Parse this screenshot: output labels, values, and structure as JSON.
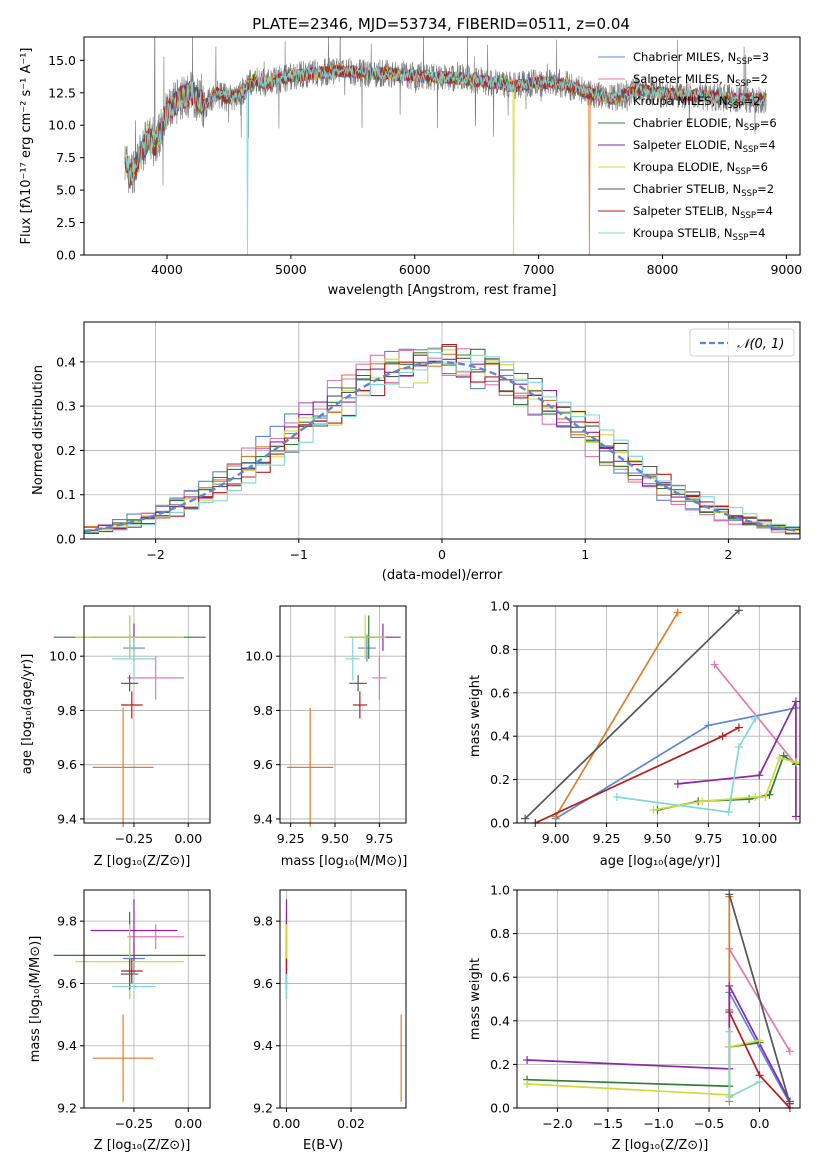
{
  "colors": {
    "Chabrier MILES": "#5b87d6",
    "Salpeter MILES": "#e377b0",
    "Kroupa MILES": "#e07b28",
    "Chabrier ELODIE": "#2e7d32",
    "Salpeter ELODIE": "#8e24aa",
    "Kroupa ELODIE": "#cddc39",
    "Chabrier STELIB": "#555555",
    "Salpeter STELIB": "#b71c1c",
    "Kroupa STELIB": "#80d8d8"
  },
  "chart_data": [
    {
      "id": "spectrum",
      "type": "line",
      "title": "PLATE=2346, MJD=53734, FIBERID=0511, z=0.04",
      "xlabel": "wavelength [Angstrom, rest frame]",
      "ylabel": "Flux [fλ10⁻¹⁷ erg cm⁻² s⁻¹ A⁻¹]",
      "xlim": [
        3330,
        9110
      ],
      "ylim": [
        0,
        16.8
      ],
      "xticks": [
        "4000",
        "5000",
        "6000",
        "7000",
        "8000",
        "9000"
      ],
      "yticks": [
        "0.0",
        "2.5",
        "5.0",
        "7.5",
        "10.0",
        "12.5",
        "15.0"
      ],
      "legend_position": "upper-right",
      "data_series": {
        "name": "data",
        "color": "#777777",
        "x": [
          3660,
          3700,
          3760,
          3800,
          3850,
          3900,
          3950,
          4000,
          4100,
          4200,
          4300,
          4400,
          4500,
          4600,
          4700,
          4800,
          4900,
          5000,
          5200,
          5400,
          5600,
          5800,
          6000,
          6200,
          6400,
          6600,
          6800,
          7000,
          7200,
          7400,
          7600,
          7800,
          8000,
          8200,
          8400,
          8600,
          8800
        ],
        "y": [
          7.6,
          6.0,
          7.0,
          8.0,
          9.0,
          8.5,
          9.5,
          11.0,
          12.0,
          12.5,
          11.5,
          12.5,
          12.0,
          12.5,
          13.5,
          13.2,
          13.5,
          13.8,
          14.0,
          14.2,
          14.0,
          14.0,
          13.8,
          13.7,
          13.6,
          13.3,
          13.0,
          13.3,
          13.2,
          12.5,
          12.0,
          12.8,
          12.5,
          12.3,
          12.2,
          12.0,
          12.0
        ]
      },
      "series": [
        {
          "name": "Chabrier MILES, N_SSP=3",
          "model": "Chabrier MILES",
          "label_main": "Chabrier MILES, N",
          "label_sub": "SSP",
          "label_eq": "=3"
        },
        {
          "name": "Salpeter MILES, N_SSP=2",
          "model": "Salpeter MILES",
          "label_main": "Salpeter MILES, N",
          "label_sub": "SSP",
          "label_eq": "=2"
        },
        {
          "name": "Kroupa MILES, N_SSP=2",
          "model": "Kroupa MILES",
          "label_main": "Kroupa MILES, N",
          "label_sub": "SSP",
          "label_eq": "=2",
          "drop_at": 7410
        },
        {
          "name": "Chabrier ELODIE, N_SSP=6",
          "model": "Chabrier ELODIE",
          "label_main": "Chabrier ELODIE, N",
          "label_sub": "SSP",
          "label_eq": "=6"
        },
        {
          "name": "Salpeter ELODIE, N_SSP=4",
          "model": "Salpeter ELODIE",
          "label_main": "Salpeter ELODIE, N",
          "label_sub": "SSP",
          "label_eq": "=4"
        },
        {
          "name": "Kroupa ELODIE, N_SSP=6",
          "model": "Kroupa ELODIE",
          "label_main": "Kroupa ELODIE, N",
          "label_sub": "SSP",
          "label_eq": "=6",
          "drop_at": 6800
        },
        {
          "name": "Chabrier STELIB, N_SSP=2",
          "model": "Chabrier STELIB",
          "label_main": "Chabrier STELIB, N",
          "label_sub": "SSP",
          "label_eq": "=2"
        },
        {
          "name": "Salpeter STELIB, N_SSP=4",
          "model": "Salpeter STELIB",
          "label_main": "Salpeter STELIB, N",
          "label_sub": "SSP",
          "label_eq": "=4"
        },
        {
          "name": "Kroupa STELIB, N_SSP=4",
          "model": "Kroupa STELIB",
          "label_main": "Kroupa STELIB, N",
          "label_sub": "SSP",
          "label_eq": "=4",
          "drop_at": 4650
        }
      ]
    },
    {
      "id": "residuals",
      "type": "histogram",
      "xlabel": "(data-model)/error",
      "ylabel": "Normed distribution",
      "xlim": [
        -2.5,
        2.5
      ],
      "ylim": [
        0,
        0.49
      ],
      "xticks": [
        "−2",
        "−1",
        "0",
        "1",
        "2"
      ],
      "yticks": [
        "0.0",
        "0.1",
        "0.2",
        "0.3",
        "0.4"
      ],
      "grid": true,
      "legend_position": "upper-right",
      "reference": {
        "name": "N(0, 1)",
        "label": "𝒩(0, 1)",
        "color": "#5b87d6",
        "style": "dashed",
        "mean": 0,
        "sigma": 1
      },
      "bin_width": 0.1
    },
    {
      "id": "age_vs_Z",
      "type": "errorbar",
      "xlabel": "Z [log₁₀(Z/Z⊙)]",
      "ylabel": "age  [log₁₀(age/yr)]",
      "xlim": [
        -0.48,
        0.1
      ],
      "ylim": [
        9.385,
        10.185
      ],
      "xticks": [
        "−0.25",
        "0.00"
      ],
      "xtick_values": [
        -0.25,
        0.0
      ],
      "yticks": [
        "9.4",
        "9.6",
        "9.8",
        "10.0"
      ],
      "ytick_values": [
        9.4,
        9.6,
        9.8,
        10.0
      ],
      "grid": true,
      "points": [
        {
          "model": "Chabrier MILES",
          "x": -0.25,
          "xerr": 0.05,
          "y": 10.03,
          "yerr": 0.05
        },
        {
          "model": "Salpeter MILES",
          "x": -0.15,
          "xerr": 0.13,
          "y": 9.92,
          "yerr": 0.08
        },
        {
          "model": "Kroupa MILES",
          "x": -0.3,
          "xerr": 0.14,
          "y": 9.59,
          "yerr": 0.22
        },
        {
          "model": "Chabrier ELODIE",
          "x": -0.27,
          "xerr": 0.35,
          "y": 10.07,
          "yerr": 0.08
        },
        {
          "model": "Salpeter ELODIE",
          "x": -0.25,
          "xerr": 0.2,
          "y": 10.07,
          "yerr": 0.05
        },
        {
          "model": "Kroupa ELODIE",
          "x": -0.27,
          "xerr": 0.25,
          "y": 10.07,
          "yerr": 0.08
        },
        {
          "model": "Chabrier STELIB",
          "x": -0.27,
          "xerr": 0.04,
          "y": 9.9,
          "yerr": 0.03
        },
        {
          "model": "Salpeter STELIB",
          "x": -0.26,
          "xerr": 0.05,
          "y": 9.82,
          "yerr": 0.05
        },
        {
          "model": "Kroupa STELIB",
          "x": -0.25,
          "xerr": 0.1,
          "y": 9.99,
          "yerr": 0.08
        }
      ]
    },
    {
      "id": "age_vs_mass",
      "type": "errorbar",
      "xlabel": "mass [log₁₀(M/M⊙)]",
      "ylabel": "",
      "xlim": [
        9.19,
        9.9
      ],
      "ylim": [
        9.385,
        10.185
      ],
      "xticks": [
        "9.25",
        "9.50",
        "9.75"
      ],
      "xtick_values": [
        9.25,
        9.5,
        9.75
      ],
      "yticks": [
        "9.4",
        "9.6",
        "9.8",
        "10.0"
      ],
      "ytick_values": [
        9.4,
        9.6,
        9.8,
        10.0
      ],
      "grid": true,
      "points": [
        {
          "model": "Chabrier MILES",
          "x": 9.68,
          "xerr": 0.05,
          "y": 10.03,
          "yerr": 0.05
        },
        {
          "model": "Salpeter MILES",
          "x": 9.75,
          "xerr": 0.04,
          "y": 9.92,
          "yerr": 0.08
        },
        {
          "model": "Kroupa MILES",
          "x": 9.36,
          "xerr": 0.13,
          "y": 9.59,
          "yerr": 0.22
        },
        {
          "model": "Chabrier ELODIE",
          "x": 9.69,
          "xerr": 0.11,
          "y": 10.07,
          "yerr": 0.08
        },
        {
          "model": "Salpeter ELODIE",
          "x": 9.77,
          "xerr": 0.1,
          "y": 10.07,
          "yerr": 0.05
        },
        {
          "model": "Kroupa ELODIE",
          "x": 9.67,
          "xerr": 0.12,
          "y": 10.07,
          "yerr": 0.08
        },
        {
          "model": "Chabrier STELIB",
          "x": 9.63,
          "xerr": 0.05,
          "y": 9.9,
          "yerr": 0.03
        },
        {
          "model": "Salpeter STELIB",
          "x": 9.64,
          "xerr": 0.04,
          "y": 9.82,
          "yerr": 0.05
        },
        {
          "model": "Kroupa STELIB",
          "x": 9.6,
          "xerr": 0.04,
          "y": 9.99,
          "yerr": 0.08
        }
      ]
    },
    {
      "id": "weight_vs_age",
      "type": "line",
      "xlabel": "age  [log₁₀(age/yr)]",
      "ylabel": "mass weight",
      "xlim": [
        8.81,
        10.2
      ],
      "ylim": [
        0,
        1
      ],
      "xticks": [
        "9.00",
        "9.25",
        "9.50",
        "9.75",
        "10.00"
      ],
      "xtick_values": [
        9.0,
        9.25,
        9.5,
        9.75,
        10.0
      ],
      "yticks": [
        "0.0",
        "0.2",
        "0.4",
        "0.6",
        "0.8",
        "1.0"
      ],
      "ytick_values": [
        0,
        0.2,
        0.4,
        0.6,
        0.8,
        1.0
      ],
      "grid": true,
      "series": [
        {
          "model": "Chabrier MILES",
          "x": [
            9.0,
            9.75,
            10.18
          ],
          "y": [
            0.02,
            0.45,
            0.53
          ]
        },
        {
          "model": "Salpeter MILES",
          "x": [
            9.78,
            10.18
          ],
          "y": [
            0.73,
            0.27
          ]
        },
        {
          "model": "Kroupa MILES",
          "x": [
            9.0,
            9.6
          ],
          "y": [
            0.03,
            0.97
          ]
        },
        {
          "model": "Chabrier ELODIE",
          "x": [
            9.5,
            9.7,
            9.95,
            10.05,
            10.12,
            10.18
          ],
          "y": [
            0.06,
            0.1,
            0.11,
            0.13,
            0.31,
            0.27
          ]
        },
        {
          "model": "Salpeter ELODIE",
          "x": [
            9.6,
            10.0,
            10.18,
            10.18
          ],
          "y": [
            0.18,
            0.22,
            0.56,
            0.03
          ]
        },
        {
          "model": "Kroupa ELODIE",
          "x": [
            9.48,
            9.72,
            9.98,
            10.03,
            10.1,
            10.18
          ],
          "y": [
            0.06,
            0.1,
            0.12,
            0.12,
            0.3,
            0.28
          ]
        },
        {
          "model": "Chabrier STELIB",
          "x": [
            8.85,
            9.9
          ],
          "y": [
            0.02,
            0.98
          ]
        },
        {
          "model": "Salpeter STELIB",
          "x": [
            8.9,
            9.82,
            9.9
          ],
          "y": [
            0.0,
            0.4,
            0.44
          ]
        },
        {
          "model": "Kroupa STELIB",
          "x": [
            9.3,
            9.85,
            9.9,
            9.98
          ],
          "y": [
            0.12,
            0.05,
            0.35,
            0.48
          ]
        }
      ]
    },
    {
      "id": "mass_vs_Z",
      "type": "errorbar",
      "xlabel": "Z [log₁₀(Z/Z⊙)]",
      "ylabel": "mass [log₁₀(M/M⊙)]",
      "xlim": [
        -0.48,
        0.1
      ],
      "ylim": [
        9.2,
        9.9
      ],
      "xticks": [
        "−0.25",
        "0.00"
      ],
      "xtick_values": [
        -0.25,
        0.0
      ],
      "yticks": [
        "9.2",
        "9.4",
        "9.6",
        "9.8"
      ],
      "ytick_values": [
        9.2,
        9.4,
        9.6,
        9.8
      ],
      "grid": true,
      "points": [
        {
          "model": "Chabrier MILES",
          "x": -0.25,
          "xerr": 0.05,
          "y": 9.68,
          "yerr": 0.05
        },
        {
          "model": "Salpeter MILES",
          "x": -0.15,
          "xerr": 0.13,
          "y": 9.75,
          "yerr": 0.04
        },
        {
          "model": "Kroupa MILES",
          "x": -0.3,
          "xerr": 0.14,
          "y": 9.36,
          "yerr": 0.14
        },
        {
          "model": "Chabrier ELODIE",
          "x": -0.27,
          "xerr": 0.35,
          "y": 9.69,
          "yerr": 0.14
        },
        {
          "model": "Salpeter ELODIE",
          "x": -0.25,
          "xerr": 0.2,
          "y": 9.77,
          "yerr": 0.1
        },
        {
          "model": "Kroupa ELODIE",
          "x": -0.27,
          "xerr": 0.25,
          "y": 9.67,
          "yerr": 0.12
        },
        {
          "model": "Chabrier STELIB",
          "x": -0.27,
          "xerr": 0.04,
          "y": 9.63,
          "yerr": 0.05
        },
        {
          "model": "Salpeter STELIB",
          "x": -0.26,
          "xerr": 0.05,
          "y": 9.64,
          "yerr": 0.04
        },
        {
          "model": "Kroupa STELIB",
          "x": -0.25,
          "xerr": 0.1,
          "y": 9.59,
          "yerr": 0.04
        }
      ]
    },
    {
      "id": "mass_vs_ebv",
      "type": "errorbar",
      "xlabel": "E(B-V)",
      "ylabel": "",
      "xlim": [
        -0.002,
        0.037
      ],
      "ylim": [
        9.2,
        9.9
      ],
      "xticks": [
        "0.00",
        "0.02"
      ],
      "xtick_values": [
        0.0,
        0.02
      ],
      "yticks": [
        "9.2",
        "9.4",
        "9.6",
        "9.8"
      ],
      "ytick_values": [
        9.2,
        9.4,
        9.6,
        9.8
      ],
      "grid": true,
      "points": [
        {
          "model": "Chabrier MILES",
          "x": 0.0,
          "xerr": 0,
          "y": 9.68,
          "yerr": 0.05
        },
        {
          "model": "Salpeter MILES",
          "x": 0.0,
          "xerr": 0,
          "y": 9.75,
          "yerr": 0.04
        },
        {
          "model": "Kroupa MILES",
          "x": 0.0355,
          "xerr": 0,
          "y": 9.36,
          "yerr": 0.14
        },
        {
          "model": "Chabrier ELODIE",
          "x": 0.0,
          "xerr": 0,
          "y": 9.69,
          "yerr": 0.14
        },
        {
          "model": "Salpeter ELODIE",
          "x": 0.0,
          "xerr": 0,
          "y": 9.77,
          "yerr": 0.1
        },
        {
          "model": "Kroupa ELODIE",
          "x": 0.0,
          "xerr": 0,
          "y": 9.67,
          "yerr": 0.12
        },
        {
          "model": "Chabrier STELIB",
          "x": 0.0,
          "xerr": 0,
          "y": 9.63,
          "yerr": 0.05
        },
        {
          "model": "Salpeter STELIB",
          "x": 0.0,
          "xerr": 0,
          "y": 9.64,
          "yerr": 0.04
        },
        {
          "model": "Kroupa STELIB",
          "x": 0.0,
          "xerr": 0,
          "y": 9.59,
          "yerr": 0.04
        }
      ]
    },
    {
      "id": "weight_vs_Z",
      "type": "line",
      "xlabel": "Z [log₁₀(Z/Z⊙)]",
      "ylabel": "mass weight",
      "xlim": [
        -2.4,
        0.4
      ],
      "ylim": [
        0,
        1
      ],
      "xticks": [
        "−2.0",
        "−1.5",
        "−1.0",
        "−0.5",
        "0.0"
      ],
      "xtick_values": [
        -2.0,
        -1.5,
        -1.0,
        -0.5,
        0.0
      ],
      "yticks": [
        "0.0",
        "0.2",
        "0.4",
        "0.6",
        "0.8",
        "1.0"
      ],
      "ytick_values": [
        0,
        0.2,
        0.4,
        0.6,
        0.8,
        1.0
      ],
      "grid": true,
      "series": [
        {
          "model": "Chabrier MILES",
          "x": [
            -0.3,
            -0.3,
            0.3
          ],
          "y": [
            0.45,
            0.53,
            0.02
          ]
        },
        {
          "model": "Salpeter MILES",
          "x": [
            -0.3,
            0.3
          ],
          "y": [
            0.73,
            0.26
          ]
        },
        {
          "model": "Kroupa MILES",
          "x": [
            -0.3,
            -0.3
          ],
          "y": [
            0.03,
            0.97
          ]
        },
        {
          "model": "Chabrier ELODIE",
          "x": [
            -2.3,
            -0.3,
            -0.3,
            0.0
          ],
          "y": [
            0.13,
            0.1,
            0.28,
            0.3
          ]
        },
        {
          "model": "Salpeter ELODIE",
          "x": [
            -2.3,
            -0.3,
            -0.3,
            0.3
          ],
          "y": [
            0.22,
            0.18,
            0.56,
            0.03
          ]
        },
        {
          "model": "Kroupa ELODIE",
          "x": [
            -2.3,
            -0.3,
            -0.3,
            0.0
          ],
          "y": [
            0.11,
            0.06,
            0.28,
            0.31
          ]
        },
        {
          "model": "Chabrier STELIB",
          "x": [
            -0.3,
            0.3
          ],
          "y": [
            0.98,
            0.02
          ]
        },
        {
          "model": "Salpeter STELIB",
          "x": [
            -0.3,
            0.0,
            0.3
          ],
          "y": [
            0.44,
            0.15,
            0.0
          ]
        },
        {
          "model": "Kroupa STELIB",
          "x": [
            -0.3,
            -0.3,
            0.0
          ],
          "y": [
            0.35,
            0.05,
            0.12
          ]
        }
      ]
    }
  ]
}
